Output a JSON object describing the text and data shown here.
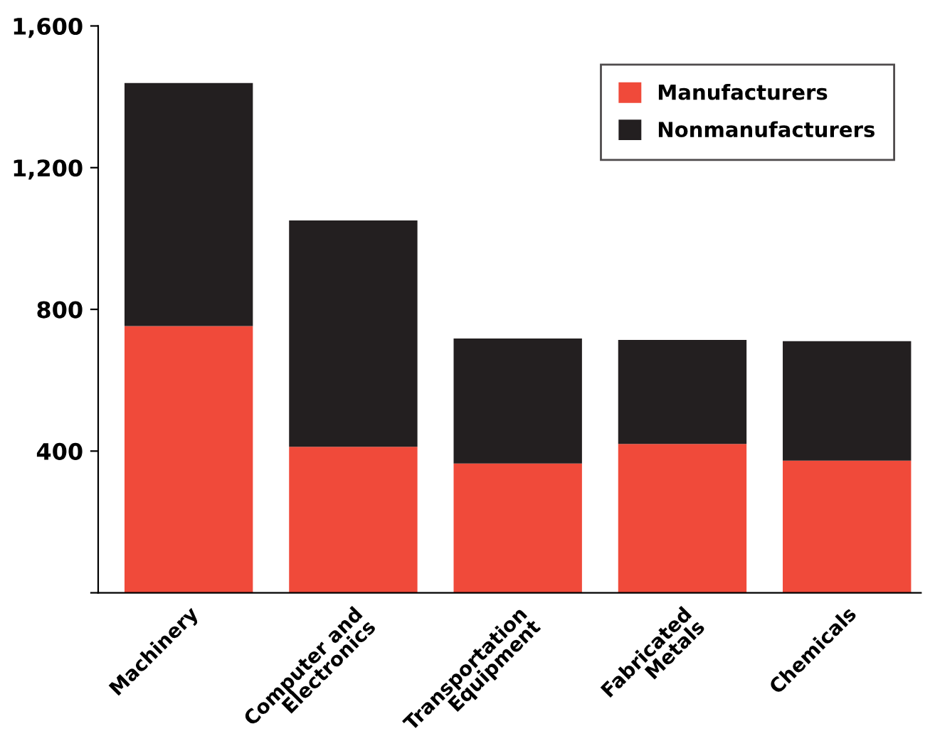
{
  "chart_data": {
    "type": "bar",
    "stacked": true,
    "categories": [
      "Machinery",
      "Computer and\nElectronics",
      "Transportation\nEquipment",
      "Fabricated\nMetals",
      "Chemicals"
    ],
    "series": [
      {
        "name": "Manufacturers",
        "color": "#f04a3a",
        "values": [
          753,
          412,
          365,
          420,
          373
        ]
      },
      {
        "name": "Nonmanufacturers",
        "color": "#231f20",
        "values": [
          686,
          639,
          353,
          294,
          337
        ]
      }
    ],
    "ylim": [
      0,
      1600
    ],
    "yticks": [
      {
        "value": 0,
        "label": null
      },
      {
        "value": 400,
        "label": "400"
      },
      {
        "value": 800,
        "label": "800"
      },
      {
        "value": 1200,
        "label": "1,200"
      },
      {
        "value": 1600,
        "label": "1,600"
      }
    ],
    "grid": false,
    "legend": "top right"
  }
}
